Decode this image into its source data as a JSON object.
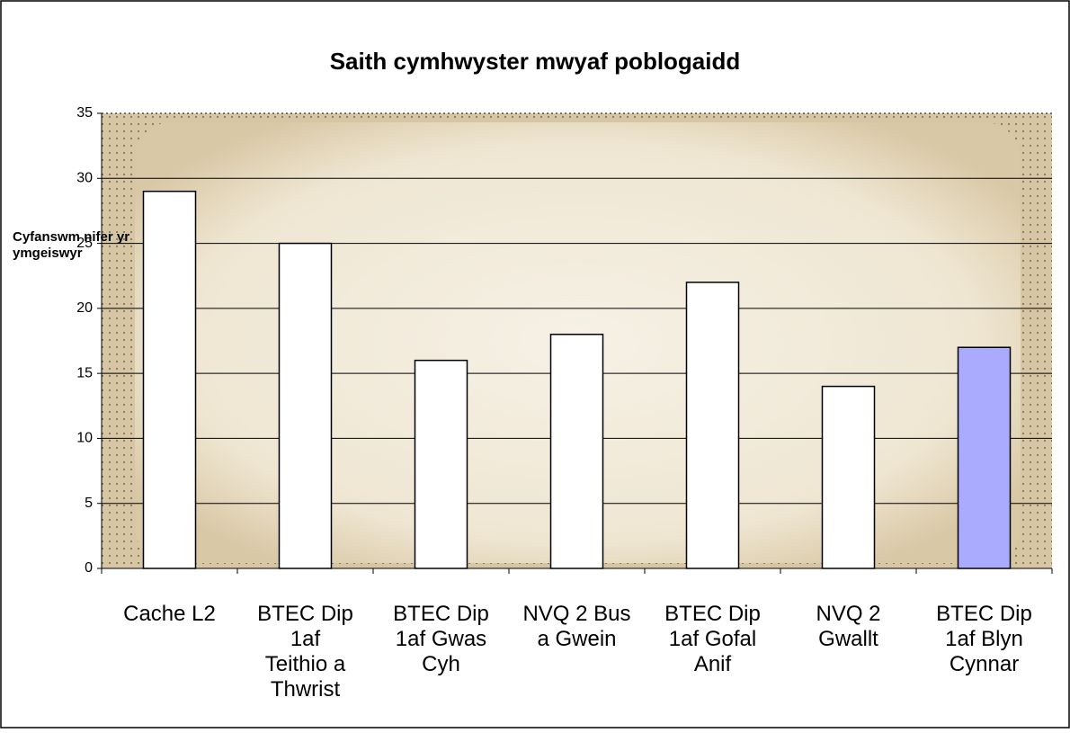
{
  "chart_data": {
    "type": "bar",
    "title": "Saith cymhwyster mwyaf poblogaidd",
    "y_label": "Cyfanswm nifer yr ymgeiswyr",
    "categories": [
      "Cache L2",
      "BTEC Dip 1af Teithio a Thwrist",
      "BTEC Dip 1af Gwas Cyh",
      "NVQ 2 Bus a Gwein",
      "BTEC Dip 1af Gofal Anif",
      "NVQ 2 Gwallt",
      "BTEC Dip 1af Blyn Cynnar"
    ],
    "values": [
      29,
      25,
      16,
      18,
      22,
      14,
      17
    ],
    "colors": [
      "#ffffff",
      "#ffffff",
      "#ffffff",
      "#ffffff",
      "#ffffff",
      "#ffffff",
      "#aaaaff"
    ],
    "ylim": [
      0,
      35
    ],
    "yticks": [
      0,
      5,
      10,
      15,
      20,
      25,
      30,
      35
    ],
    "grid": true
  }
}
